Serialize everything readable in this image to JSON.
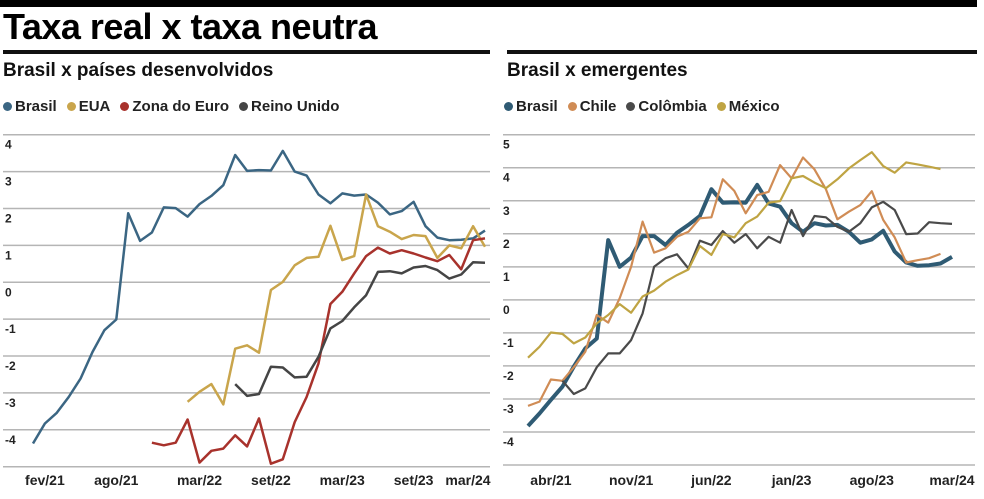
{
  "title": "Taxa real x taxa neutra",
  "chart_data": [
    {
      "type": "line",
      "title": "Brasil x países desenvolvidos",
      "months_start": "jan/21",
      "months_count": 39,
      "xticks": [
        {
          "label": "fev/21",
          "month": 1
        },
        {
          "label": "ago/21",
          "month": 7
        },
        {
          "label": "mar/22",
          "month": 14
        },
        {
          "label": "set/22",
          "month": 20
        },
        {
          "label": "mar/23",
          "month": 26
        },
        {
          "label": "set/23",
          "month": 32
        },
        {
          "label": "mar/24",
          "month": 38
        }
      ],
      "yticks": [
        "4",
        "3",
        "2",
        "1",
        "0",
        "-1",
        "-2",
        "-3",
        "-4"
      ],
      "ylim": [
        -5,
        4
      ],
      "grid": true,
      "legend_position": "top-left",
      "series": [
        {
          "name": "Brasil",
          "color": "#3b6683",
          "start_month": 0,
          "values": [
            -4.37,
            -3.83,
            -3.54,
            -3.11,
            -2.61,
            -1.89,
            -1.3,
            -1.01,
            1.87,
            1.12,
            1.35,
            2.03,
            2.01,
            1.78,
            2.12,
            2.34,
            2.63,
            3.45,
            3.02,
            3.04,
            3.03,
            3.56,
            3.0,
            2.89,
            2.38,
            2.14,
            2.41,
            2.35,
            2.38,
            2.16,
            1.84,
            1.93,
            2.18,
            1.52,
            1.21,
            1.14,
            1.15,
            1.19,
            1.4
          ]
        },
        {
          "name": "EUA",
          "color": "#c9a54c",
          "start_month": 13,
          "values": [
            -3.24,
            -2.97,
            -2.76,
            -3.31,
            -1.8,
            -1.71,
            -1.91,
            -0.21,
            0.01,
            0.46,
            0.66,
            0.69,
            1.53,
            0.6,
            0.71,
            2.38,
            1.52,
            1.37,
            1.17,
            1.28,
            1.25,
            0.66,
            1.0,
            0.92,
            1.52,
            0.96
          ]
        },
        {
          "name": "Zona do Euro",
          "color": "#a8322c",
          "start_month": 10,
          "values": [
            -4.35,
            -4.42,
            -4.35,
            -3.72,
            -4.89,
            -4.57,
            -4.51,
            -4.15,
            -4.45,
            -3.69,
            -4.92,
            -4.8,
            -3.79,
            -3.11,
            -2.2,
            -0.59,
            -0.26,
            0.24,
            0.71,
            0.94,
            0.78,
            0.87,
            0.78,
            0.67,
            0.57,
            0.74,
            0.35,
            1.14,
            1.19
          ]
        },
        {
          "name": "Reino Unido",
          "color": "#454545",
          "start_month": 17,
          "values": [
            -2.76,
            -3.08,
            -3.03,
            -2.29,
            -2.31,
            -2.58,
            -2.56,
            -2.02,
            -1.25,
            -1.05,
            -0.68,
            -0.35,
            0.28,
            0.3,
            0.24,
            0.4,
            0.44,
            0.33,
            0.1,
            0.21,
            0.54,
            0.53
          ]
        }
      ]
    },
    {
      "type": "line",
      "title": "Brasil x emergentes",
      "months_start": "fev/21",
      "months_count": 38,
      "xticks": [
        {
          "label": "abr/21",
          "month": 2
        },
        {
          "label": "nov/21",
          "month": 9
        },
        {
          "label": "jun/22",
          "month": 16
        },
        {
          "label": "jan/23",
          "month": 23
        },
        {
          "label": "ago/23",
          "month": 30
        },
        {
          "label": "mar/24",
          "month": 37
        }
      ],
      "yticks": [
        "5",
        "4",
        "3",
        "2",
        "1",
        "0",
        "-1",
        "-2",
        "-3",
        "-4"
      ],
      "ylim": [
        -5,
        5
      ],
      "grid": true,
      "legend_position": "top-left",
      "series": [
        {
          "name": "Brasil",
          "color": "#2f5b74",
          "start_month": 0,
          "values": [
            -3.82,
            -3.44,
            -3.03,
            -2.63,
            -2.02,
            -1.47,
            -1.17,
            1.81,
            1.0,
            1.28,
            1.93,
            1.93,
            1.66,
            2.03,
            2.27,
            2.54,
            3.35,
            2.94,
            2.95,
            2.94,
            3.48,
            2.92,
            2.82,
            2.32,
            2.06,
            2.32,
            2.25,
            2.27,
            2.06,
            1.73,
            1.83,
            2.09,
            1.46,
            1.13,
            1.03,
            1.05,
            1.1,
            1.3
          ]
        },
        {
          "name": "Chile",
          "color": "#d08c55",
          "start_month": 0,
          "values": [
            -3.21,
            -3.08,
            -2.41,
            -2.45,
            -2.04,
            -1.57,
            -0.46,
            -0.69,
            0.05,
            1.0,
            2.37,
            1.43,
            1.56,
            1.91,
            2.06,
            2.47,
            2.5,
            3.65,
            3.3,
            2.62,
            3.17,
            3.27,
            4.08,
            3.68,
            4.31,
            3.95,
            3.35,
            2.44,
            2.67,
            2.87,
            3.29,
            2.42,
            1.89,
            1.13,
            1.2,
            1.26,
            1.39
          ]
        },
        {
          "name": "Colômbia",
          "color": "#4a4a4a",
          "start_month": 3,
          "values": [
            -2.45,
            -2.85,
            -2.68,
            -2.04,
            -1.62,
            -1.62,
            -1.22,
            -0.41,
            1.0,
            1.26,
            1.38,
            0.95,
            1.79,
            1.66,
            2.08,
            1.73,
            1.99,
            1.56,
            1.91,
            1.73,
            2.72,
            1.93,
            2.54,
            2.5,
            2.21,
            2.06,
            2.32,
            2.8,
            2.97,
            2.72,
            1.99,
            2.01,
            2.35,
            2.32,
            2.3
          ]
        },
        {
          "name": "México",
          "color": "#bfa443",
          "start_month": 0,
          "values": [
            -1.75,
            -1.42,
            -0.99,
            -1.03,
            -1.32,
            -1.14,
            -0.71,
            -0.46,
            -0.13,
            -0.39,
            0.1,
            0.28,
            0.55,
            0.75,
            0.92,
            1.63,
            1.36,
            1.99,
            1.89,
            2.32,
            2.52,
            2.94,
            2.99,
            3.68,
            3.75,
            3.55,
            3.38,
            3.65,
            3.98,
            4.23,
            4.47,
            4.05,
            3.85,
            4.16,
            4.1,
            4.03,
            3.96
          ]
        }
      ]
    }
  ]
}
